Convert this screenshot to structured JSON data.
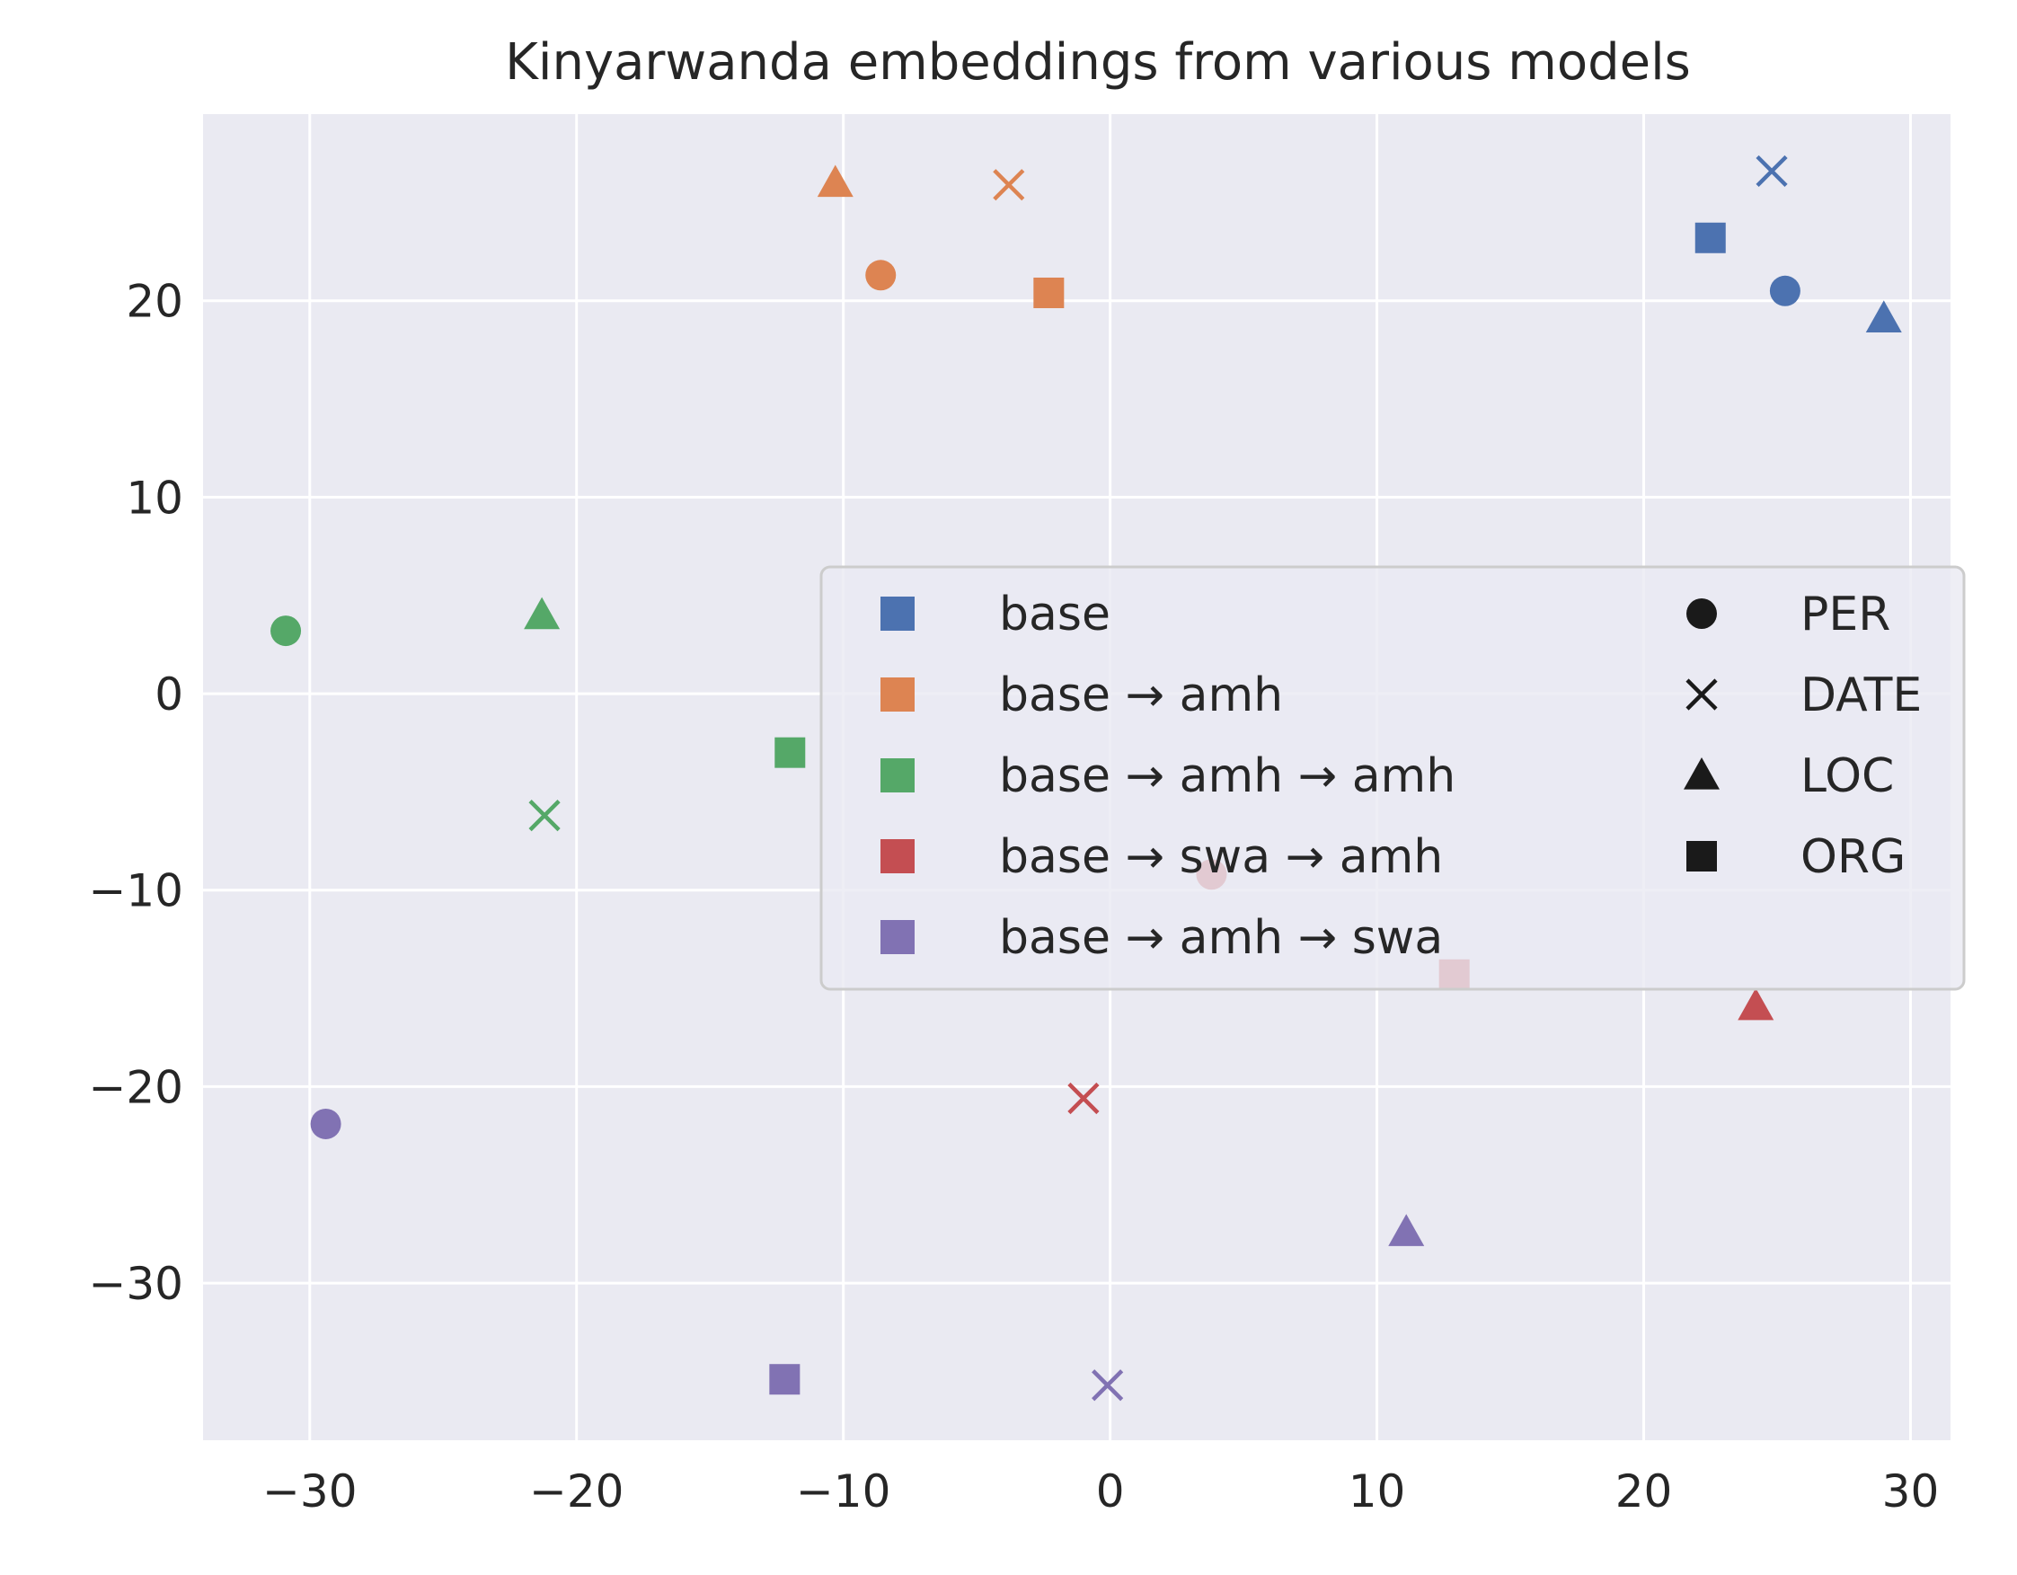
{
  "chart_data": {
    "type": "scatter",
    "title": "Kinyarwanda embeddings from various models",
    "xlabel": "",
    "ylabel": "",
    "xlim": [
      -34,
      31.5
    ],
    "ylim": [
      -38,
      29.5
    ],
    "xticks": [
      -30,
      -20,
      -10,
      0,
      10,
      20,
      30
    ],
    "yticks": [
      -30,
      -20,
      -10,
      0,
      10,
      20
    ],
    "grid": true,
    "legend_placement": "center-right",
    "colors": {
      "background": "#eaeaf2",
      "grid": "#ffffff",
      "base": "#4c72b0",
      "base → amh": "#dd8452",
      "base → amh → amh": "#55a868",
      "base → swa → amh": "#c44e52",
      "base → amh → swa": "#8172b3"
    },
    "model_legend": [
      {
        "label": "base",
        "color": "#4c72b0"
      },
      {
        "label": "base → amh",
        "color": "#dd8452"
      },
      {
        "label": "base → amh → amh",
        "color": "#55a868"
      },
      {
        "label": "base → swa → amh",
        "color": "#c44e52"
      },
      {
        "label": "base → amh → swa",
        "color": "#8172b3"
      }
    ],
    "entity_legend": [
      {
        "label": "PER",
        "marker": "circle"
      },
      {
        "label": "DATE",
        "marker": "x"
      },
      {
        "label": "LOC",
        "marker": "triangle"
      },
      {
        "label": "ORG",
        "marker": "square"
      }
    ],
    "series": [
      {
        "name": "base",
        "color": "#4c72b0",
        "points": [
          {
            "entity": "DATE",
            "x": 24.8,
            "y": 26.6
          },
          {
            "entity": "ORG",
            "x": 22.5,
            "y": 23.2
          },
          {
            "entity": "PER",
            "x": 25.3,
            "y": 20.5
          },
          {
            "entity": "LOC",
            "x": 29.0,
            "y": 19.1
          }
        ]
      },
      {
        "name": "base → amh",
        "color": "#dd8452",
        "points": [
          {
            "entity": "LOC",
            "x": -10.3,
            "y": 26.0
          },
          {
            "entity": "DATE",
            "x": -3.8,
            "y": 25.9
          },
          {
            "entity": "PER",
            "x": -8.6,
            "y": 21.3
          },
          {
            "entity": "ORG",
            "x": -2.3,
            "y": 20.4
          }
        ]
      },
      {
        "name": "base → amh → amh",
        "color": "#55a868",
        "points": [
          {
            "entity": "PER",
            "x": -30.9,
            "y": 3.2
          },
          {
            "entity": "LOC",
            "x": -21.3,
            "y": 4.0
          },
          {
            "entity": "ORG",
            "x": -12.0,
            "y": -3.0
          },
          {
            "entity": "DATE",
            "x": -21.2,
            "y": -6.2
          }
        ]
      },
      {
        "name": "base → swa → amh",
        "color": "#c44e52",
        "points": [
          {
            "entity": "PER",
            "x": 3.8,
            "y": -9.2
          },
          {
            "entity": "ORG",
            "x": 12.9,
            "y": -14.3
          },
          {
            "entity": "LOC",
            "x": 24.2,
            "y": -15.9
          },
          {
            "entity": "DATE",
            "x": -1.0,
            "y": -20.6
          }
        ]
      },
      {
        "name": "base → amh → swa",
        "color": "#8172b3",
        "points": [
          {
            "entity": "PER",
            "x": -29.4,
            "y": -21.9
          },
          {
            "entity": "LOC",
            "x": 11.1,
            "y": -27.4
          },
          {
            "entity": "ORG",
            "x": -12.2,
            "y": -34.9
          },
          {
            "entity": "DATE",
            "x": -0.1,
            "y": -35.2
          }
        ]
      }
    ]
  }
}
